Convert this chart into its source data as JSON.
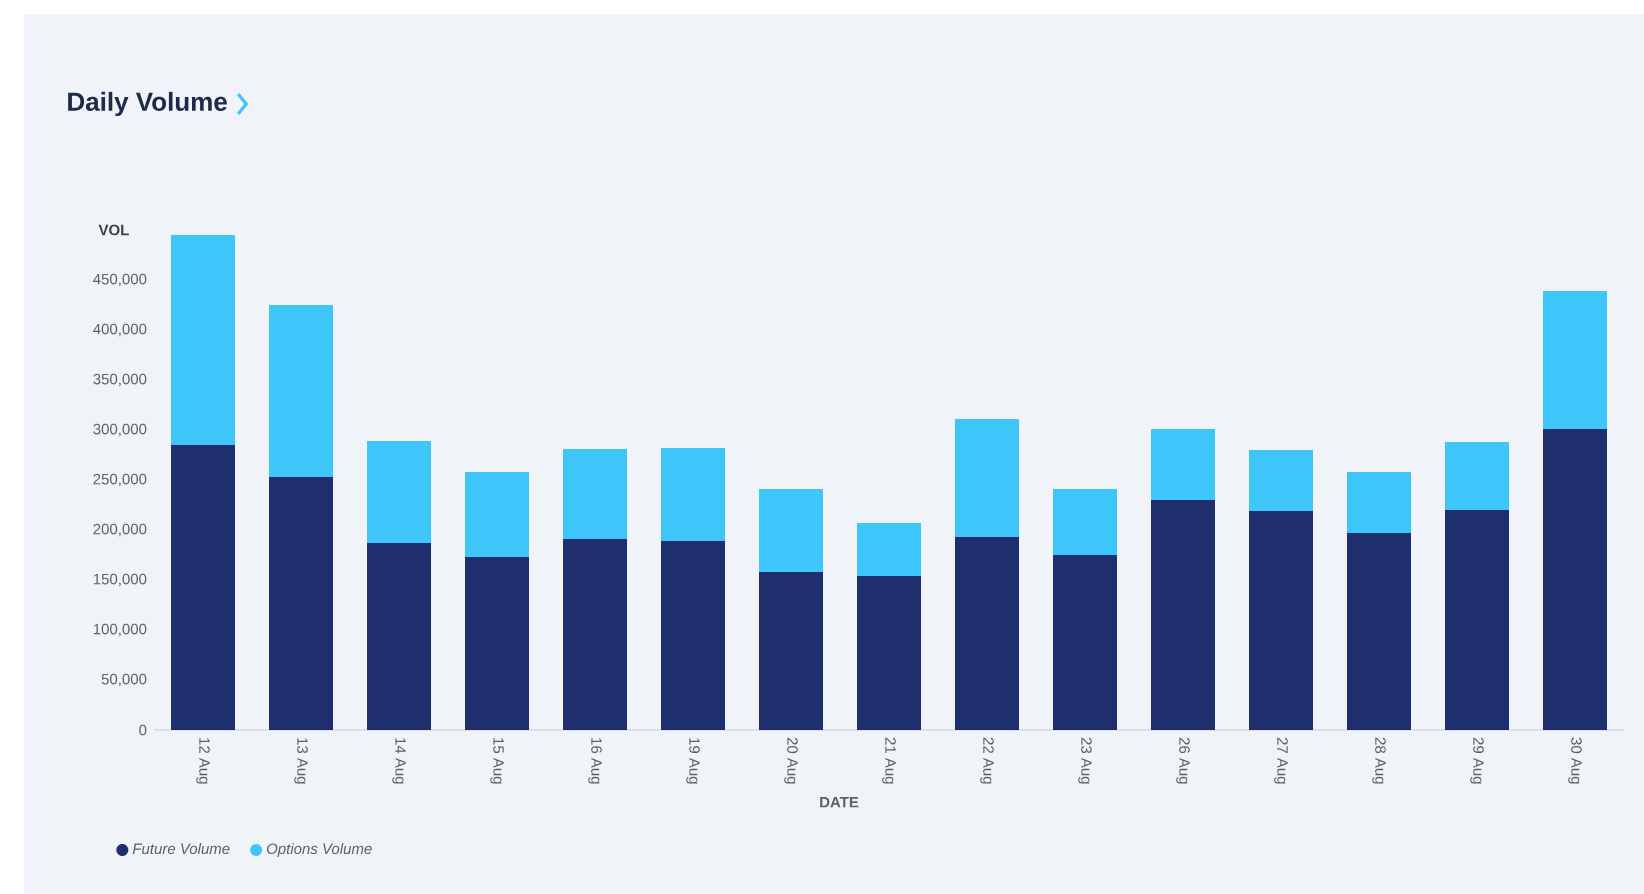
{
  "chart_data": {
    "type": "bar",
    "title": "Daily Volume",
    "xlabel": "DATE",
    "ylabel": "VOL",
    "categories": [
      "12 Aug",
      "13 Aug",
      "14 Aug",
      "15 Aug",
      "16 Aug",
      "19 Aug",
      "20 Aug",
      "21 Aug",
      "22 Aug",
      "23 Aug",
      "26 Aug",
      "27 Aug",
      "28 Aug",
      "29 Aug",
      "30 Aug"
    ],
    "series": [
      {
        "name": "Future Volume",
        "color": "#1f2f6e",
        "values": [
          285000,
          253000,
          187000,
          173000,
          191000,
          189000,
          158000,
          154000,
          193000,
          175000,
          230000,
          219000,
          197000,
          220000,
          301000
        ]
      },
      {
        "name": "Options Volume",
        "color": "#3ec6fb",
        "values": [
          210000,
          172000,
          102000,
          85000,
          90000,
          93000,
          83000,
          53000,
          118000,
          66000,
          71000,
          61000,
          61000,
          68000,
          138000
        ]
      }
    ],
    "stacked": true,
    "ylim": [
      0,
      500000
    ],
    "yticks": [
      {
        "value": 0,
        "label": "0"
      },
      {
        "value": 50000,
        "label": "50,000"
      },
      {
        "value": 100000,
        "label": "100,000"
      },
      {
        "value": 150000,
        "label": "150,000"
      },
      {
        "value": 200000,
        "label": "200,000"
      },
      {
        "value": 250000,
        "label": "250,000"
      },
      {
        "value": 300000,
        "label": "300,000"
      },
      {
        "value": 350000,
        "label": "350,000"
      },
      {
        "value": 400000,
        "label": "400,000"
      },
      {
        "value": 450000,
        "label": "450,000"
      }
    ],
    "grid": false,
    "legend": "bottom left"
  }
}
